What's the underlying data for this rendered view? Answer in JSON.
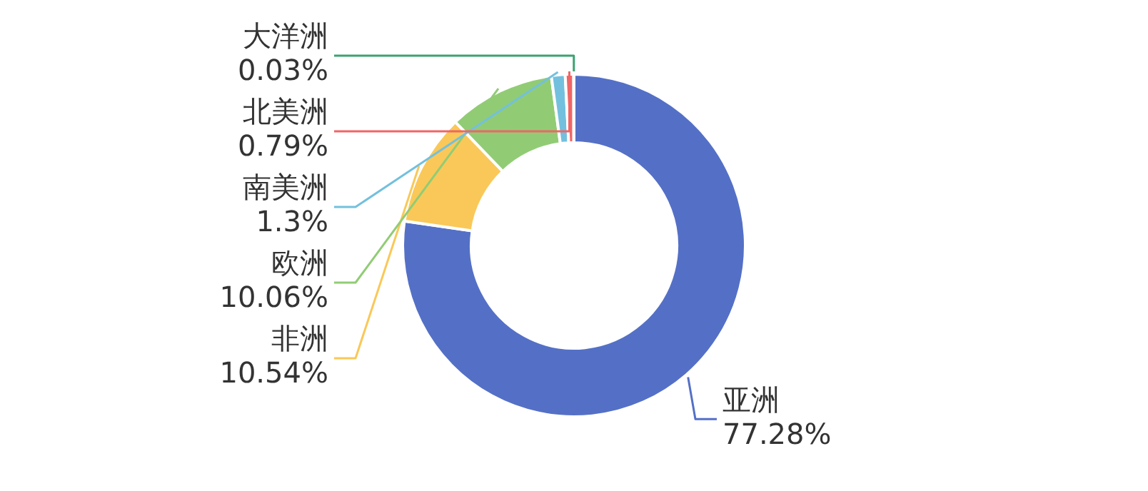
{
  "chart_data": {
    "type": "donut",
    "categories": [
      "亚洲",
      "非洲",
      "欧洲",
      "南美洲",
      "北美洲",
      "大洋洲"
    ],
    "values": [
      77.28,
      10.54,
      10.06,
      1.3,
      0.79,
      0.03
    ],
    "colors": [
      "#5470c6",
      "#fac858",
      "#91cc75",
      "#73c0de",
      "#ee6666",
      "#3ba272"
    ],
    "value_labels": [
      "77.28%",
      "10.54%",
      "10.06%",
      "1.3%",
      "0.79%",
      "0.03%"
    ],
    "legend": false
  }
}
